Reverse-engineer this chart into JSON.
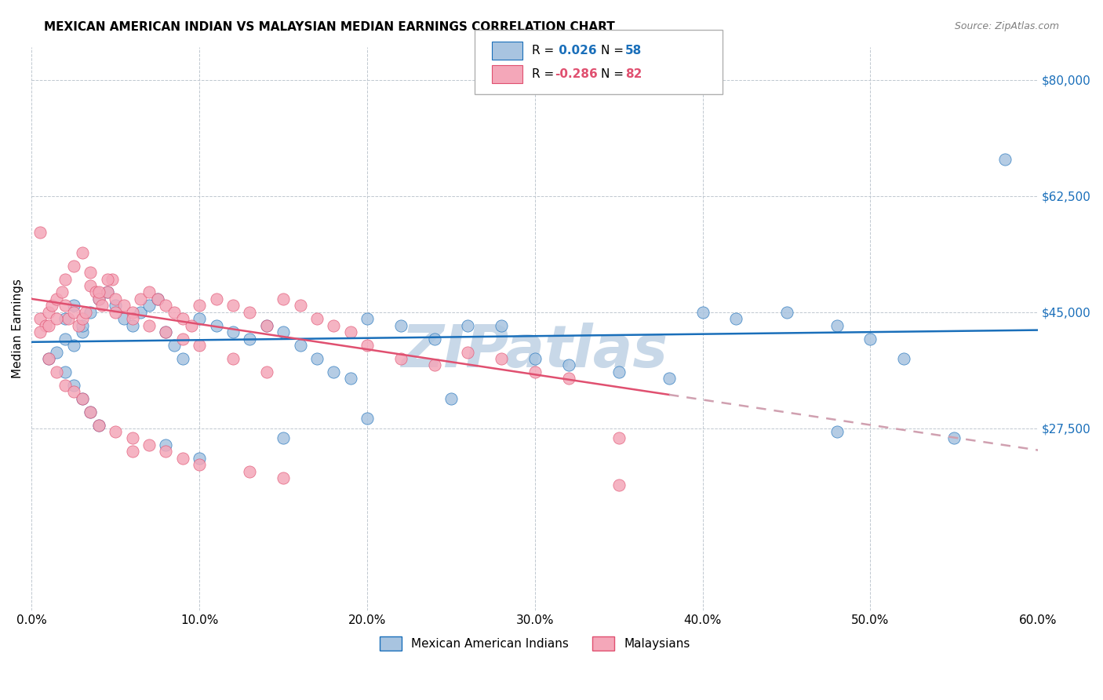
{
  "title": "MEXICAN AMERICAN INDIAN VS MALAYSIAN MEDIAN EARNINGS CORRELATION CHART",
  "source": "Source: ZipAtlas.com",
  "ylabel": "Median Earnings",
  "x_min": 0.0,
  "x_max": 0.6,
  "y_min": 0,
  "y_max": 85000,
  "legend_blue_label": "Mexican American Indians",
  "legend_pink_label": "Malaysians",
  "blue_color": "#a8c4e0",
  "pink_color": "#f4a7b9",
  "blue_line_color": "#1a6fba",
  "pink_line_color": "#e05070",
  "pink_dashed_color": "#d0a0b0",
  "watermark_color": "#c8d8e8",
  "r_value_blue": 0.026,
  "r_value_pink": -0.286,
  "blue_scatter_x": [
    0.02,
    0.025,
    0.03,
    0.01,
    0.015,
    0.02,
    0.025,
    0.03,
    0.035,
    0.04,
    0.045,
    0.05,
    0.055,
    0.06,
    0.065,
    0.07,
    0.075,
    0.08,
    0.085,
    0.09,
    0.1,
    0.11,
    0.12,
    0.13,
    0.14,
    0.15,
    0.16,
    0.17,
    0.18,
    0.19,
    0.2,
    0.22,
    0.24,
    0.26,
    0.28,
    0.3,
    0.32,
    0.35,
    0.38,
    0.4,
    0.42,
    0.45,
    0.48,
    0.5,
    0.52,
    0.55,
    0.02,
    0.025,
    0.03,
    0.035,
    0.04,
    0.08,
    0.1,
    0.15,
    0.2,
    0.25,
    0.48,
    0.58
  ],
  "blue_scatter_y": [
    41000,
    40000,
    42000,
    38000,
    39000,
    44000,
    46000,
    43000,
    45000,
    47000,
    48000,
    46000,
    44000,
    43000,
    45000,
    46000,
    47000,
    42000,
    40000,
    38000,
    44000,
    43000,
    42000,
    41000,
    43000,
    42000,
    40000,
    38000,
    36000,
    35000,
    44000,
    43000,
    41000,
    43000,
    43000,
    38000,
    37000,
    36000,
    35000,
    45000,
    44000,
    45000,
    43000,
    41000,
    38000,
    26000,
    36000,
    34000,
    32000,
    30000,
    28000,
    25000,
    23000,
    26000,
    29000,
    32000,
    27000,
    68000
  ],
  "pink_scatter_x": [
    0.005,
    0.008,
    0.01,
    0.012,
    0.015,
    0.018,
    0.02,
    0.022,
    0.025,
    0.028,
    0.03,
    0.032,
    0.035,
    0.038,
    0.04,
    0.042,
    0.045,
    0.048,
    0.05,
    0.055,
    0.06,
    0.065,
    0.07,
    0.075,
    0.08,
    0.085,
    0.09,
    0.095,
    0.1,
    0.11,
    0.12,
    0.13,
    0.14,
    0.15,
    0.16,
    0.17,
    0.18,
    0.19,
    0.2,
    0.22,
    0.24,
    0.26,
    0.28,
    0.3,
    0.32,
    0.005,
    0.01,
    0.015,
    0.02,
    0.025,
    0.03,
    0.035,
    0.04,
    0.045,
    0.05,
    0.06,
    0.07,
    0.08,
    0.09,
    0.1,
    0.12,
    0.14,
    0.35,
    0.005,
    0.01,
    0.015,
    0.02,
    0.025,
    0.03,
    0.035,
    0.04,
    0.05,
    0.06,
    0.07,
    0.08,
    0.09,
    0.1,
    0.13,
    0.15,
    0.35,
    0.06
  ],
  "pink_scatter_y": [
    44000,
    43000,
    45000,
    46000,
    47000,
    48000,
    46000,
    44000,
    45000,
    43000,
    44000,
    45000,
    49000,
    48000,
    47000,
    46000,
    48000,
    50000,
    47000,
    46000,
    45000,
    47000,
    48000,
    47000,
    46000,
    45000,
    44000,
    43000,
    46000,
    47000,
    46000,
    45000,
    43000,
    47000,
    46000,
    44000,
    43000,
    42000,
    40000,
    38000,
    37000,
    39000,
    38000,
    36000,
    35000,
    42000,
    43000,
    44000,
    50000,
    52000,
    54000,
    51000,
    48000,
    50000,
    45000,
    44000,
    43000,
    42000,
    41000,
    40000,
    38000,
    36000,
    26000,
    57000,
    38000,
    36000,
    34000,
    33000,
    32000,
    30000,
    28000,
    27000,
    26000,
    25000,
    24000,
    23000,
    22000,
    21000,
    20000,
    19000,
    24000
  ],
  "y_ticks": [
    0,
    27500,
    45000,
    62500,
    80000
  ],
  "y_tick_labels": [
    "",
    "$27,500",
    "$45,000",
    "$62,500",
    "$80,000"
  ],
  "x_ticks": [
    0.0,
    0.1,
    0.2,
    0.3,
    0.4,
    0.5,
    0.6
  ],
  "x_tick_labels": [
    "0.0%",
    "10.0%",
    "20.0%",
    "30.0%",
    "40.0%",
    "50.0%",
    "60.0%"
  ]
}
